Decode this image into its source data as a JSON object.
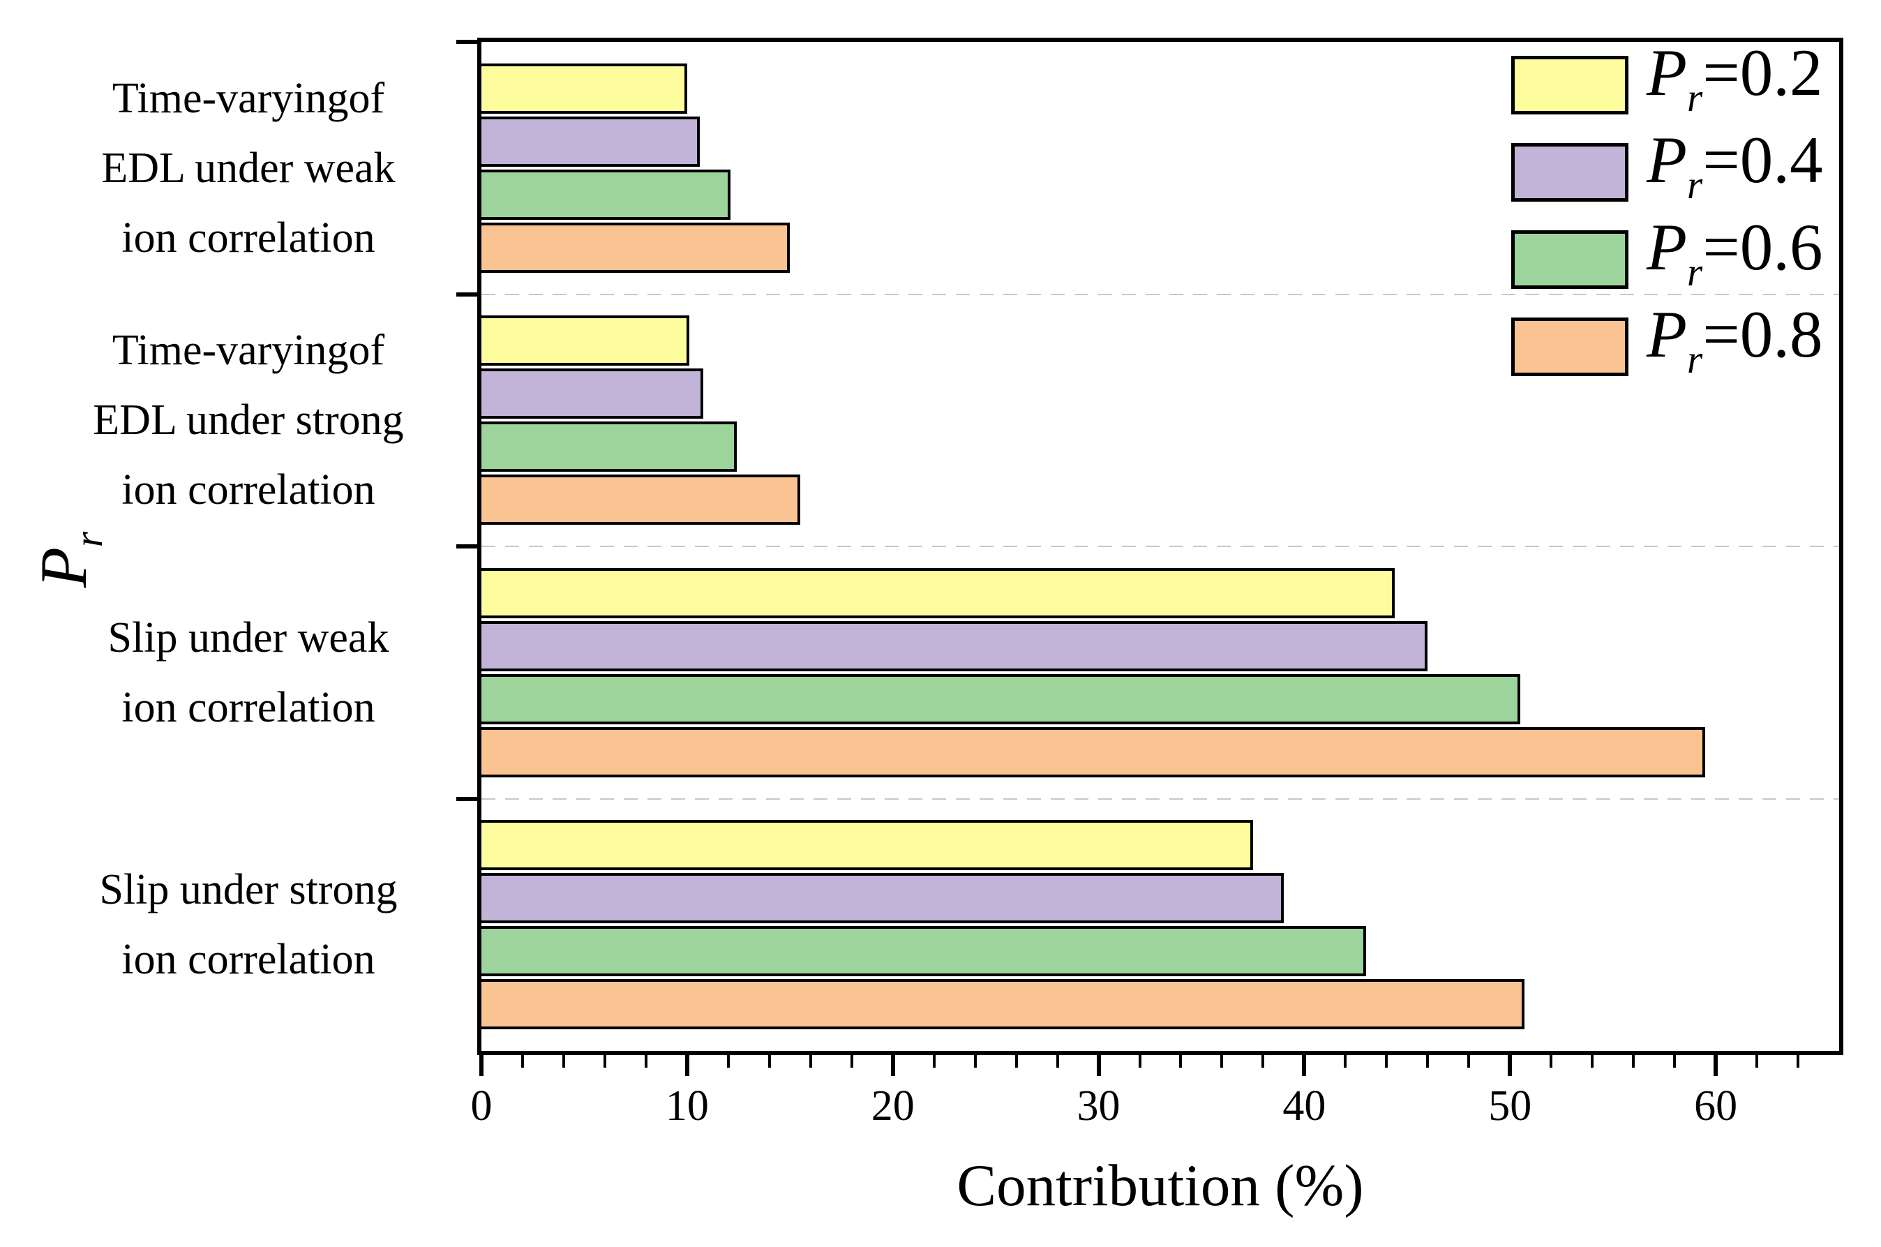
{
  "chart_data": {
    "type": "bar",
    "orientation": "horizontal",
    "title": "",
    "xlabel": "Contribution (%)",
    "ylabel": {
      "main": "P",
      "sub": "r"
    },
    "xlim": [
      0,
      66
    ],
    "x_major_ticks": [
      0,
      10,
      20,
      30,
      40,
      50,
      60
    ],
    "x_minor_tick_step": 2,
    "grid": "dashed horizontal separators between category groups",
    "legend_position": "top-right inside plot area",
    "categories": [
      {
        "id": "time-varying-edl-weak",
        "label_lines": [
          "Time-varyingof",
          "EDL under weak",
          "ion correlation"
        ]
      },
      {
        "id": "time-varying-edl-strong",
        "label_lines": [
          "Time-varyingof",
          "EDL under strong",
          "ion correlation"
        ]
      },
      {
        "id": "slip-weak",
        "label_lines": [
          "Slip under weak",
          "ion correlation"
        ]
      },
      {
        "id": "slip-strong",
        "label_lines": [
          "Slip under strong",
          "ion correlation"
        ]
      }
    ],
    "series": [
      {
        "name": "Pr=0.2",
        "legend": {
          "main": "P",
          "sub": "r",
          "rest": "=0.2"
        },
        "color": "#FDFD9E",
        "values": [
          10.0,
          10.1,
          44.4,
          37.5
        ]
      },
      {
        "name": "Pr=0.4",
        "legend": {
          "main": "P",
          "sub": "r",
          "rest": "=0.4"
        },
        "color": "#C2B3D8",
        "values": [
          10.6,
          10.8,
          46.0,
          39.0
        ]
      },
      {
        "name": "Pr=0.6",
        "legend": {
          "main": "P",
          "sub": "r",
          "rest": "=0.6"
        },
        "color": "#9CD49B",
        "values": [
          12.1,
          12.4,
          50.5,
          43.0
        ]
      },
      {
        "name": "Pr=0.8",
        "legend": {
          "main": "P",
          "sub": "r",
          "rest": "=0.8"
        },
        "color": "#FAC392",
        "values": [
          15.0,
          15.5,
          59.5,
          50.7
        ]
      }
    ],
    "styles": {
      "bar_border_color": "#000000",
      "axis_color": "#000000",
      "separator_color": "#c8c8c8",
      "background": "#ffffff"
    }
  }
}
